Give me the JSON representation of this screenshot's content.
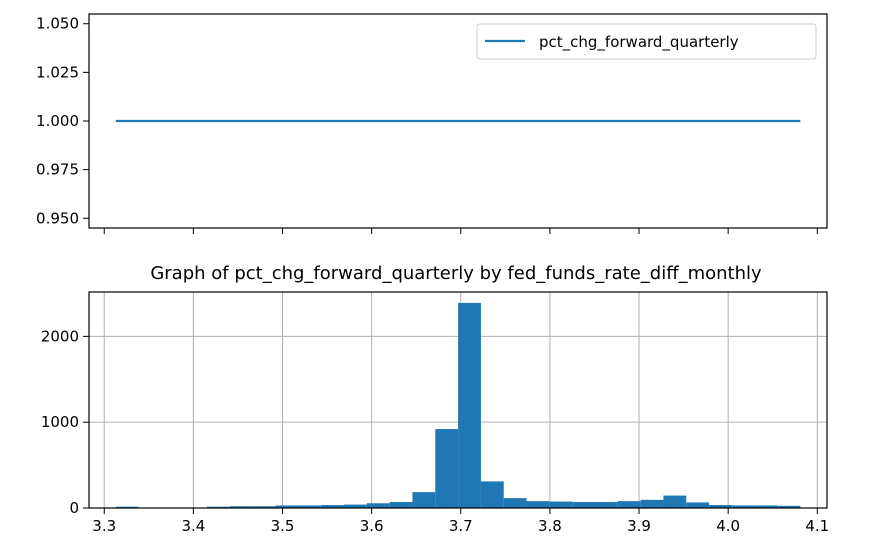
{
  "chart_data": [
    {
      "type": "line",
      "title": "",
      "xlabel": "",
      "ylabel": "",
      "x_range": [
        3.3,
        4.1
      ],
      "ylim": [
        0.945,
        1.055
      ],
      "y_ticks": [
        "0.950",
        "0.975",
        "1.000",
        "1.025",
        "1.050"
      ],
      "grid": false,
      "legend": "top-right",
      "series": [
        {
          "name": "pct_chg_forward_quarterly",
          "x": [
            3.313,
            4.081
          ],
          "values": [
            1.0,
            1.0
          ],
          "color": "#1f77b4"
        }
      ]
    },
    {
      "type": "bar",
      "title": "Graph of pct_chg_forward_quarterly by fed_funds_rate_diff_monthly",
      "xlabel": "",
      "ylabel": "",
      "xlim": [
        3.3,
        4.1
      ],
      "ylim": [
        0,
        2500
      ],
      "x_ticks": [
        "3.3",
        "3.4",
        "3.5",
        "3.6",
        "3.7",
        "3.8",
        "3.9",
        "4.0",
        "4.1"
      ],
      "y_ticks": [
        "0",
        "1000",
        "2000"
      ],
      "grid": true,
      "color": "#1f77b4",
      "bins": {
        "edges": [
          3.313,
          3.3386,
          3.3642,
          3.3898,
          3.4154,
          3.441,
          3.4666,
          3.4922,
          3.5178,
          3.5434,
          3.569,
          3.5946,
          3.6202,
          3.6458,
          3.6714,
          3.697,
          3.7226,
          3.7482,
          3.7738,
          3.7994,
          3.825,
          3.8506,
          3.8762,
          3.9018,
          3.9274,
          3.953,
          3.9786,
          4.0042,
          4.0298,
          4.0554,
          4.081
        ],
        "values": [
          15,
          5,
          5,
          5,
          15,
          20,
          20,
          30,
          30,
          35,
          40,
          55,
          70,
          185,
          920,
          2390,
          310,
          115,
          80,
          75,
          70,
          70,
          80,
          95,
          145,
          65,
          35,
          30,
          30,
          25
        ]
      }
    }
  ]
}
